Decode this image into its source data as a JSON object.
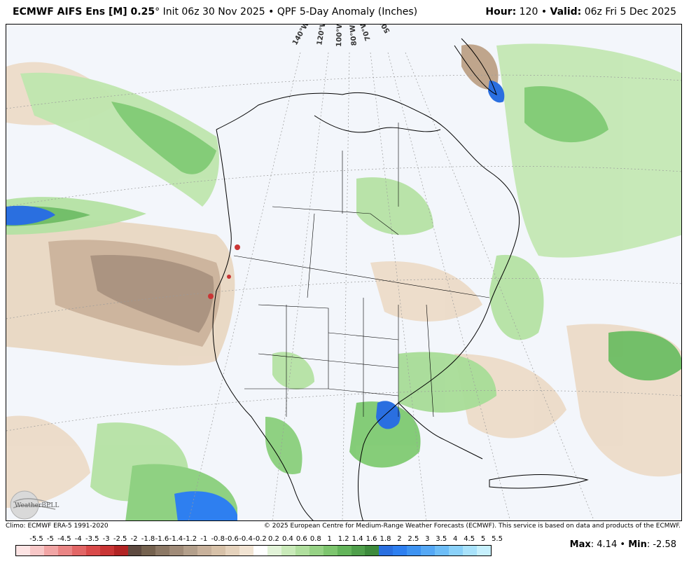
{
  "header": {
    "model": "ECMWF AIFS Ens [M] 0.25",
    "degree": "°",
    "init": "Init 06z 30 Nov 2025",
    "separator": "•",
    "product": "QPF 5-Day Anomaly (Inches)",
    "hour_label": "Hour:",
    "hour_value": "120",
    "valid_label": "Valid:",
    "valid_value": "06z Fri 5 Dec 2025"
  },
  "map": {
    "longitude_labels": [
      "140°W",
      "120°W",
      "100°W",
      "80°W",
      "70°W",
      "50°W"
    ]
  },
  "credits": {
    "climo": "Climo: ECMWF ERA-5 1991-2020",
    "copyright": "© 2025 European Centre for Medium-Range Weather Forecasts (ECMWF). This service is based on data and products of the ECMWF.",
    "logo_text": "WeatherBELL"
  },
  "legend": {
    "labels": [
      "-5.5",
      "-5",
      "-4.5",
      "-4",
      "-3.5",
      "-3",
      "-2.5",
      "-2",
      "-1.8",
      "-1.6",
      "-1.4",
      "-1.2",
      "-1",
      "-0.8",
      "-0.6",
      "-0.4",
      "-0.2",
      "0.2",
      "0.4",
      "0.6",
      "0.8",
      "1",
      "1.2",
      "1.4",
      "1.6",
      "1.8",
      "2",
      "2.5",
      "3",
      "3.5",
      "4",
      "4.5",
      "5",
      "5.5"
    ],
    "colors": [
      "#fde4e4",
      "#f8c7c7",
      "#f1a5a5",
      "#ea8585",
      "#e26666",
      "#d94a4a",
      "#c93535",
      "#b12424",
      "#5e4a40",
      "#75624f",
      "#8c7865",
      "#a08b78",
      "#b39f8b",
      "#c8b19b",
      "#d7c1a8",
      "#e5d2bc",
      "#f2e4d3",
      "#ffffff",
      "#e2f3d8",
      "#c9eab9",
      "#b0df9e",
      "#96d285",
      "#7dc56e",
      "#63b45a",
      "#4f9f4b",
      "#3d8a3c",
      "#2a6fe0",
      "#2e7ff0",
      "#3e93f2",
      "#55a8f5",
      "#6dbdf7",
      "#8ad1f9",
      "#a8e2fb",
      "#c6f0fd"
    ]
  },
  "stats": {
    "max_label": "Max",
    "max_value": "4.14",
    "min_label": "Min",
    "min_value": "-2.58",
    "bullet": "•"
  }
}
